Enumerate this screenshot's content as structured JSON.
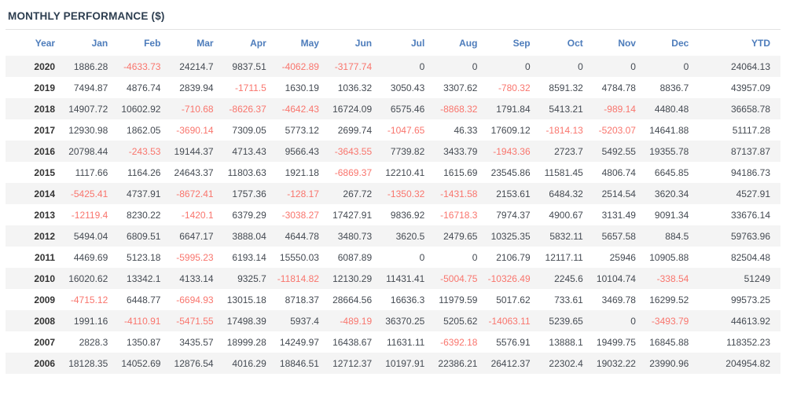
{
  "colors": {
    "title": "#2d3e50",
    "header_text": "#4d7cbb",
    "positive_value": "#444a52",
    "negative_value": "#f9756d",
    "row_stripe": "#f4f4f4",
    "title_rule": "#e3e3e3"
  },
  "chart_data": {
    "type": "table",
    "title": "MONTHLY PERFORMANCE ($)",
    "columns": [
      "Year",
      "Jan",
      "Feb",
      "Mar",
      "Apr",
      "May",
      "Jun",
      "Jul",
      "Aug",
      "Sep",
      "Oct",
      "Nov",
      "Dec",
      "YTD"
    ],
    "rows": [
      {
        "year": "2020",
        "values": [
          "1886.28",
          "-4633.73",
          "24214.7",
          "9837.51",
          "-4062.89",
          "-3177.74",
          "0",
          "0",
          "0",
          "0",
          "0",
          "0",
          "24064.13"
        ]
      },
      {
        "year": "2019",
        "values": [
          "7494.87",
          "4876.74",
          "2839.94",
          "-1711.5",
          "1630.19",
          "1036.32",
          "3050.43",
          "3307.62",
          "-780.32",
          "8591.32",
          "4784.78",
          "8836.7",
          "43957.09"
        ]
      },
      {
        "year": "2018",
        "values": [
          "14907.72",
          "10602.92",
          "-710.68",
          "-8626.37",
          "-4642.43",
          "16724.09",
          "6575.46",
          "-8868.32",
          "1791.84",
          "5413.21",
          "-989.14",
          "4480.48",
          "36658.78"
        ]
      },
      {
        "year": "2017",
        "values": [
          "12930.98",
          "1862.05",
          "-3690.14",
          "7309.05",
          "5773.12",
          "2699.74",
          "-1047.65",
          "46.33",
          "17609.12",
          "-1814.13",
          "-5203.07",
          "14641.88",
          "51117.28"
        ]
      },
      {
        "year": "2016",
        "values": [
          "20798.44",
          "-243.53",
          "19144.37",
          "4713.43",
          "9566.43",
          "-3643.55",
          "7739.82",
          "3433.79",
          "-1943.36",
          "2723.7",
          "5492.55",
          "19355.78",
          "87137.87"
        ]
      },
      {
        "year": "2015",
        "values": [
          "1117.66",
          "1164.26",
          "24643.37",
          "11803.63",
          "1921.18",
          "-6869.37",
          "12210.41",
          "1615.69",
          "23545.86",
          "11581.45",
          "4806.74",
          "6645.85",
          "94186.73"
        ]
      },
      {
        "year": "2014",
        "values": [
          "-5425.41",
          "4737.91",
          "-8672.41",
          "1757.36",
          "-128.17",
          "267.72",
          "-1350.32",
          "-1431.58",
          "2153.61",
          "6484.32",
          "2514.54",
          "3620.34",
          "4527.91"
        ]
      },
      {
        "year": "2013",
        "values": [
          "-12119.4",
          "8230.22",
          "-1420.1",
          "6379.29",
          "-3038.27",
          "17427.91",
          "9836.92",
          "-16718.3",
          "7974.37",
          "4900.67",
          "3131.49",
          "9091.34",
          "33676.14"
        ]
      },
      {
        "year": "2012",
        "values": [
          "5494.04",
          "6809.51",
          "6647.17",
          "3888.04",
          "4644.78",
          "3480.73",
          "3620.5",
          "2479.65",
          "10325.35",
          "5832.11",
          "5657.58",
          "884.5",
          "59763.96"
        ]
      },
      {
        "year": "2011",
        "values": [
          "4469.69",
          "5123.18",
          "-5995.23",
          "6193.14",
          "15550.03",
          "6087.89",
          "0",
          "0",
          "2106.79",
          "12117.11",
          "25946",
          "10905.88",
          "82504.48"
        ]
      },
      {
        "year": "2010",
        "values": [
          "16020.62",
          "13342.1",
          "4133.14",
          "9325.7",
          "-11814.82",
          "12130.29",
          "11431.41",
          "-5004.75",
          "-10326.49",
          "2245.6",
          "10104.74",
          "-338.54",
          "51249"
        ]
      },
      {
        "year": "2009",
        "values": [
          "-4715.12",
          "6448.77",
          "-6694.93",
          "13015.18",
          "8718.37",
          "28664.56",
          "16636.3",
          "11979.59",
          "5017.62",
          "733.61",
          "3469.78",
          "16299.52",
          "99573.25"
        ]
      },
      {
        "year": "2008",
        "values": [
          "1991.16",
          "-4110.91",
          "-5471.55",
          "17498.39",
          "5937.4",
          "-489.19",
          "36370.25",
          "5205.62",
          "-14063.11",
          "5239.65",
          "0",
          "-3493.79",
          "44613.92"
        ]
      },
      {
        "year": "2007",
        "values": [
          "2828.3",
          "1350.87",
          "3435.57",
          "18999.28",
          "14249.97",
          "16438.67",
          "11631.11",
          "-6392.18",
          "5576.91",
          "13888.1",
          "19499.75",
          "16845.88",
          "118352.23"
        ]
      },
      {
        "year": "2006",
        "values": [
          "18128.35",
          "14052.69",
          "12876.54",
          "4016.29",
          "18846.51",
          "12712.37",
          "10197.91",
          "22386.21",
          "26412.37",
          "22302.4",
          "19032.22",
          "23990.96",
          "204954.82"
        ]
      }
    ]
  }
}
